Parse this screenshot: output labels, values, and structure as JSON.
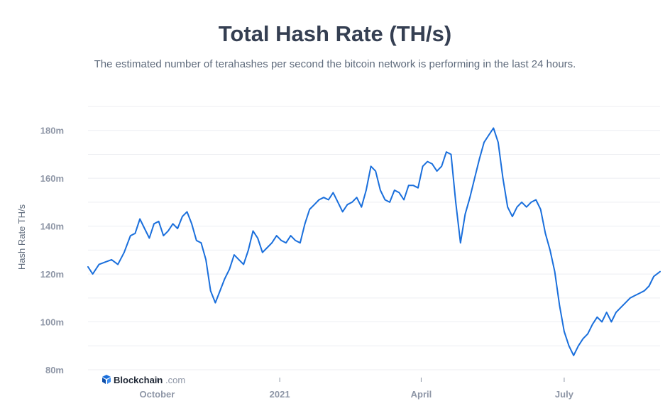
{
  "chart_data": {
    "type": "line",
    "title": "Total Hash Rate (TH/s)",
    "subtitle": "The estimated number of terahashes per second the bitcoin network is performing in the last 24 hours.",
    "xlabel": "",
    "ylabel": "Hash Rate TH/s",
    "x_ticks": [
      "October",
      "2021",
      "April",
      "July"
    ],
    "y_ticks": [
      "80m",
      "100m",
      "120m",
      "140m",
      "160m",
      "180m"
    ],
    "ylim": [
      80,
      190
    ],
    "xlim": [
      "2020-09-01",
      "2021-08-31"
    ],
    "grid": true,
    "series": [
      {
        "color": "#1a6fdc",
        "points": [
          [
            "2020-09-01",
            123
          ],
          [
            "2020-09-04",
            120
          ],
          [
            "2020-09-08",
            124
          ],
          [
            "2020-09-12",
            125
          ],
          [
            "2020-09-16",
            126
          ],
          [
            "2020-09-20",
            124
          ],
          [
            "2020-09-24",
            129
          ],
          [
            "2020-09-28",
            136
          ],
          [
            "2020-10-01",
            137
          ],
          [
            "2020-10-04",
            143
          ],
          [
            "2020-10-07",
            139
          ],
          [
            "2020-10-10",
            135
          ],
          [
            "2020-10-13",
            141
          ],
          [
            "2020-10-16",
            142
          ],
          [
            "2020-10-19",
            136
          ],
          [
            "2020-10-22",
            138
          ],
          [
            "2020-10-25",
            141
          ],
          [
            "2020-10-28",
            139
          ],
          [
            "2020-10-31",
            144
          ],
          [
            "2020-11-03",
            146
          ],
          [
            "2020-11-06",
            141
          ],
          [
            "2020-11-09",
            134
          ],
          [
            "2020-11-12",
            133
          ],
          [
            "2020-11-15",
            126
          ],
          [
            "2020-11-18",
            113
          ],
          [
            "2020-11-21",
            108
          ],
          [
            "2020-11-24",
            113
          ],
          [
            "2020-11-27",
            118
          ],
          [
            "2020-11-30",
            122
          ],
          [
            "2020-12-03",
            128
          ],
          [
            "2020-12-06",
            126
          ],
          [
            "2020-12-09",
            124
          ],
          [
            "2020-12-12",
            130
          ],
          [
            "2020-12-15",
            138
          ],
          [
            "2020-12-18",
            135
          ],
          [
            "2020-12-21",
            129
          ],
          [
            "2020-12-24",
            131
          ],
          [
            "2020-12-27",
            133
          ],
          [
            "2020-12-30",
            136
          ],
          [
            "2021-01-02",
            134
          ],
          [
            "2021-01-05",
            133
          ],
          [
            "2021-01-08",
            136
          ],
          [
            "2021-01-11",
            134
          ],
          [
            "2021-01-14",
            133
          ],
          [
            "2021-01-17",
            141
          ],
          [
            "2021-01-20",
            147
          ],
          [
            "2021-01-23",
            149
          ],
          [
            "2021-01-26",
            151
          ],
          [
            "2021-01-29",
            152
          ],
          [
            "2021-02-01",
            151
          ],
          [
            "2021-02-04",
            154
          ],
          [
            "2021-02-07",
            150
          ],
          [
            "2021-02-10",
            146
          ],
          [
            "2021-02-13",
            149
          ],
          [
            "2021-02-16",
            150
          ],
          [
            "2021-02-19",
            152
          ],
          [
            "2021-02-22",
            148
          ],
          [
            "2021-02-25",
            155
          ],
          [
            "2021-02-28",
            165
          ],
          [
            "2021-03-03",
            163
          ],
          [
            "2021-03-06",
            155
          ],
          [
            "2021-03-09",
            151
          ],
          [
            "2021-03-12",
            150
          ],
          [
            "2021-03-15",
            155
          ],
          [
            "2021-03-18",
            154
          ],
          [
            "2021-03-21",
            151
          ],
          [
            "2021-03-24",
            157
          ],
          [
            "2021-03-27",
            157
          ],
          [
            "2021-03-30",
            156
          ],
          [
            "2021-04-02",
            165
          ],
          [
            "2021-04-05",
            167
          ],
          [
            "2021-04-08",
            166
          ],
          [
            "2021-04-11",
            163
          ],
          [
            "2021-04-14",
            165
          ],
          [
            "2021-04-17",
            171
          ],
          [
            "2021-04-20",
            170
          ],
          [
            "2021-04-23",
            150
          ],
          [
            "2021-04-26",
            133
          ],
          [
            "2021-04-29",
            145
          ],
          [
            "2021-05-02",
            152
          ],
          [
            "2021-05-05",
            160
          ],
          [
            "2021-05-08",
            168
          ],
          [
            "2021-05-11",
            175
          ],
          [
            "2021-05-14",
            178
          ],
          [
            "2021-05-17",
            181
          ],
          [
            "2021-05-20",
            175
          ],
          [
            "2021-05-23",
            160
          ],
          [
            "2021-05-26",
            148
          ],
          [
            "2021-05-29",
            144
          ],
          [
            "2021-06-01",
            148
          ],
          [
            "2021-06-04",
            150
          ],
          [
            "2021-06-07",
            148
          ],
          [
            "2021-06-10",
            150
          ],
          [
            "2021-06-13",
            151
          ],
          [
            "2021-06-16",
            147
          ],
          [
            "2021-06-19",
            137
          ],
          [
            "2021-06-22",
            130
          ],
          [
            "2021-06-25",
            121
          ],
          [
            "2021-06-28",
            107
          ],
          [
            "2021-07-01",
            96
          ],
          [
            "2021-07-04",
            90
          ],
          [
            "2021-07-07",
            86
          ],
          [
            "2021-07-10",
            90
          ],
          [
            "2021-07-13",
            93
          ],
          [
            "2021-07-16",
            95
          ],
          [
            "2021-07-19",
            99
          ],
          [
            "2021-07-22",
            102
          ],
          [
            "2021-07-25",
            100
          ],
          [
            "2021-07-28",
            104
          ],
          [
            "2021-07-31",
            100
          ],
          [
            "2021-08-03",
            104
          ],
          [
            "2021-08-06",
            106
          ],
          [
            "2021-08-09",
            108
          ],
          [
            "2021-08-12",
            110
          ],
          [
            "2021-08-15",
            111
          ],
          [
            "2021-08-18",
            112
          ],
          [
            "2021-08-21",
            113
          ],
          [
            "2021-08-24",
            115
          ],
          [
            "2021-08-27",
            119
          ],
          [
            "2021-08-31",
            121
          ]
        ]
      }
    ]
  },
  "brand": {
    "name": "Blockchain",
    "suffix": ".com"
  }
}
